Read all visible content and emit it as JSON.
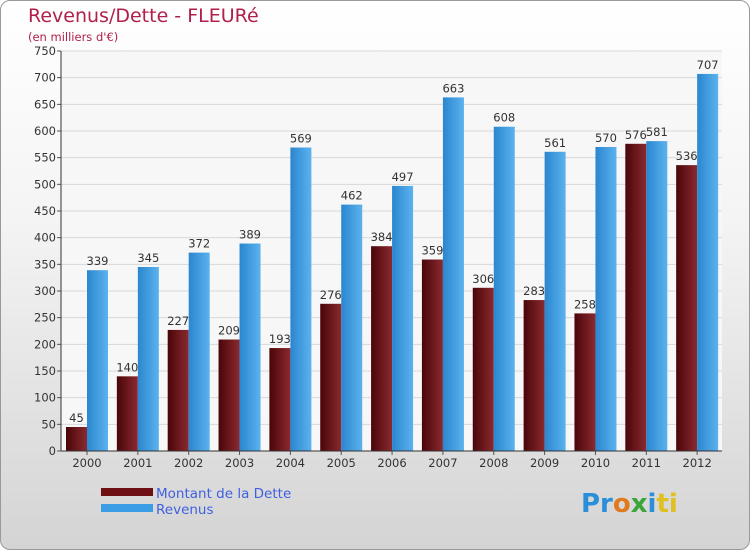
{
  "header": {
    "title": "Revenus/Dette - FLEURé",
    "subtitle": "(en milliers d'€)"
  },
  "chart_data": {
    "type": "bar",
    "title": "Revenus/Dette - FLEURé",
    "subtitle": "(en milliers d'€)",
    "categories": [
      "2000",
      "2001",
      "2002",
      "2003",
      "2004",
      "2005",
      "2006",
      "2007",
      "2008",
      "2009",
      "2010",
      "2011",
      "2012"
    ],
    "series": [
      {
        "name": "Montant de la Dette",
        "color": "#6e0f14",
        "values": [
          45,
          140,
          227,
          209,
          193,
          276,
          384,
          359,
          306,
          283,
          258,
          576,
          536
        ]
      },
      {
        "name": "Revenus",
        "color": "#3a9de6",
        "values": [
          339,
          345,
          372,
          389,
          569,
          462,
          497,
          663,
          608,
          561,
          570,
          581,
          707
        ]
      }
    ],
    "ylim": [
      0,
      750
    ],
    "yticks": [
      0,
      50,
      100,
      150,
      200,
      250,
      300,
      350,
      400,
      450,
      500,
      550,
      600,
      650,
      700,
      750
    ],
    "grid": true,
    "legend_position": "bottom-left"
  },
  "legend": {
    "items": [
      {
        "label": "Montant de la Dette",
        "color": "#6e0f14"
      },
      {
        "label": "Revenus",
        "color": "#3a9de6"
      }
    ]
  },
  "logo": {
    "parts": [
      "Pr",
      "o",
      "x",
      "i",
      "ti"
    ]
  }
}
